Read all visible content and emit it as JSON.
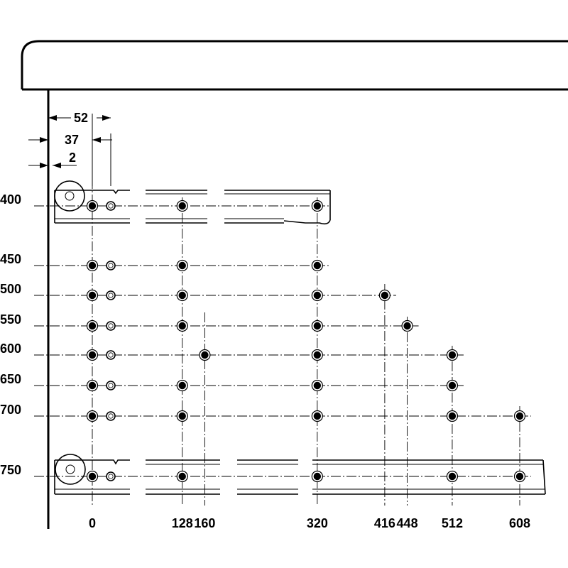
{
  "dimensions": {
    "d52": "52",
    "d37": "37",
    "d2": "2"
  },
  "x_positions": [
    0,
    128,
    160,
    320,
    416,
    448,
    512,
    608
  ],
  "x_labels": [
    "0",
    "128",
    "160",
    "320",
    "416",
    "448",
    "512",
    "608"
  ],
  "y_labels": [
    "400",
    "450",
    "500",
    "550",
    "600",
    "650",
    "700",
    "750"
  ],
  "rows": [
    {
      "label": "400",
      "holes": [
        0,
        128,
        320
      ],
      "aux": true
    },
    {
      "label": "450",
      "holes": [
        0,
        128,
        320
      ],
      "aux": true
    },
    {
      "label": "500",
      "holes": [
        0,
        128,
        320,
        416
      ],
      "aux": true
    },
    {
      "label": "550",
      "holes": [
        0,
        128,
        320,
        448
      ],
      "aux": true
    },
    {
      "label": "600",
      "holes": [
        0,
        160,
        320,
        512
      ],
      "aux": true
    },
    {
      "label": "650",
      "holes": [
        0,
        128,
        320,
        512
      ],
      "aux": true
    },
    {
      "label": "700",
      "holes": [
        0,
        128,
        320,
        512,
        608
      ],
      "aux": true
    },
    {
      "label": "750",
      "holes": [
        0,
        128,
        320,
        512,
        608
      ],
      "aux": true
    }
  ]
}
